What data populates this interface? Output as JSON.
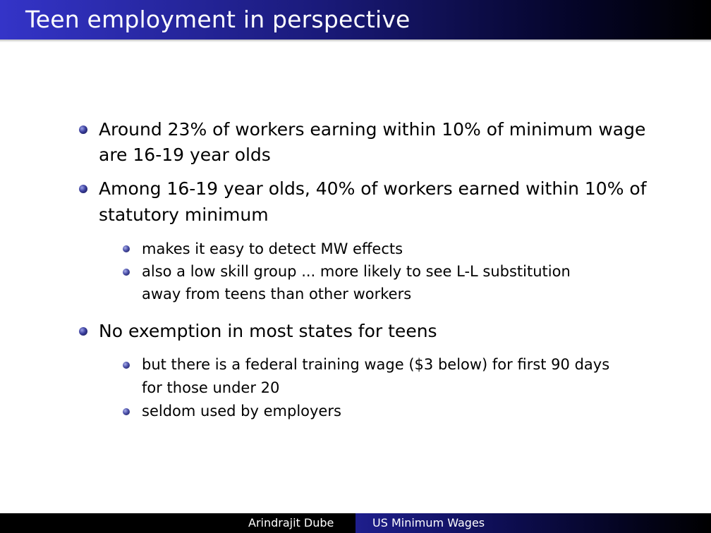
{
  "slide": {
    "title": "Teen employment in perspective"
  },
  "bullets": [
    {
      "lines": [
        "Around 23% of workers earning within 10% of minimum wage",
        "are 16-19 year olds"
      ]
    },
    {
      "lines": [
        "Among 16-19 year olds, 40% of workers earned within 10% of",
        "statutory minimum"
      ],
      "sub": [
        {
          "lines": [
            "makes it easy to detect MW effects"
          ]
        },
        {
          "lines": [
            "also a low skill group ... more likely to see L-L substitution",
            "away from teens than other workers"
          ]
        }
      ]
    },
    {
      "lines": [
        "No exemption in most states for teens"
      ],
      "sub": [
        {
          "lines": [
            "but there is a federal training wage ($3 below) for first 90 days",
            "for those under 20"
          ]
        },
        {
          "lines": [
            "seldom used by employers"
          ]
        }
      ]
    }
  ],
  "footer": {
    "author": "Arindrajit Dube",
    "short_title": "US Minimum Wages"
  }
}
